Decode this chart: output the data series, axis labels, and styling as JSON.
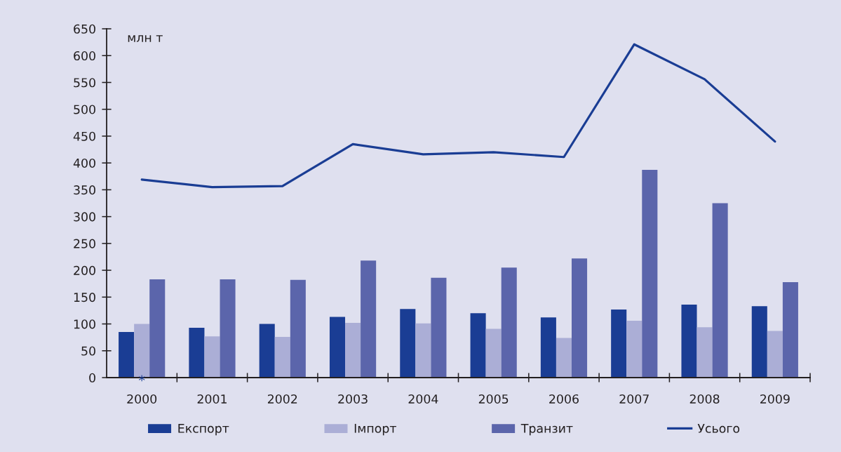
{
  "chart_data": {
    "type": "bar",
    "ylabel": "млн т",
    "categories": [
      "2000",
      "2001",
      "2002",
      "2003",
      "2004",
      "2005",
      "2006",
      "2007",
      "2008",
      "2009"
    ],
    "series": [
      {
        "name": "Експорт",
        "color": "#1a3d94",
        "values": [
          85,
          93,
          100,
          113,
          128,
          120,
          112,
          127,
          136,
          133
        ]
      },
      {
        "name": "Імпорт",
        "color": "#abaed6",
        "values": [
          100,
          77,
          76,
          102,
          101,
          91,
          74,
          106,
          94,
          87
        ]
      },
      {
        "name": "Транзит",
        "color": "#5b65ab",
        "values": [
          183,
          183,
          182,
          218,
          186,
          205,
          222,
          387,
          325,
          178
        ]
      },
      {
        "name": "Усього",
        "type": "line",
        "color": "#1a3d94",
        "values": [
          369,
          355,
          357,
          435,
          416,
          420,
          411,
          621,
          556,
          440
        ]
      }
    ],
    "ylim": [
      0,
      650
    ],
    "yticks": [
      0,
      50,
      100,
      150,
      200,
      250,
      300,
      350,
      400,
      450,
      500,
      550,
      600,
      650
    ],
    "legend": "bottom",
    "annotations": [
      {
        "text": "*",
        "x": "2000",
        "y": 0
      }
    ]
  }
}
